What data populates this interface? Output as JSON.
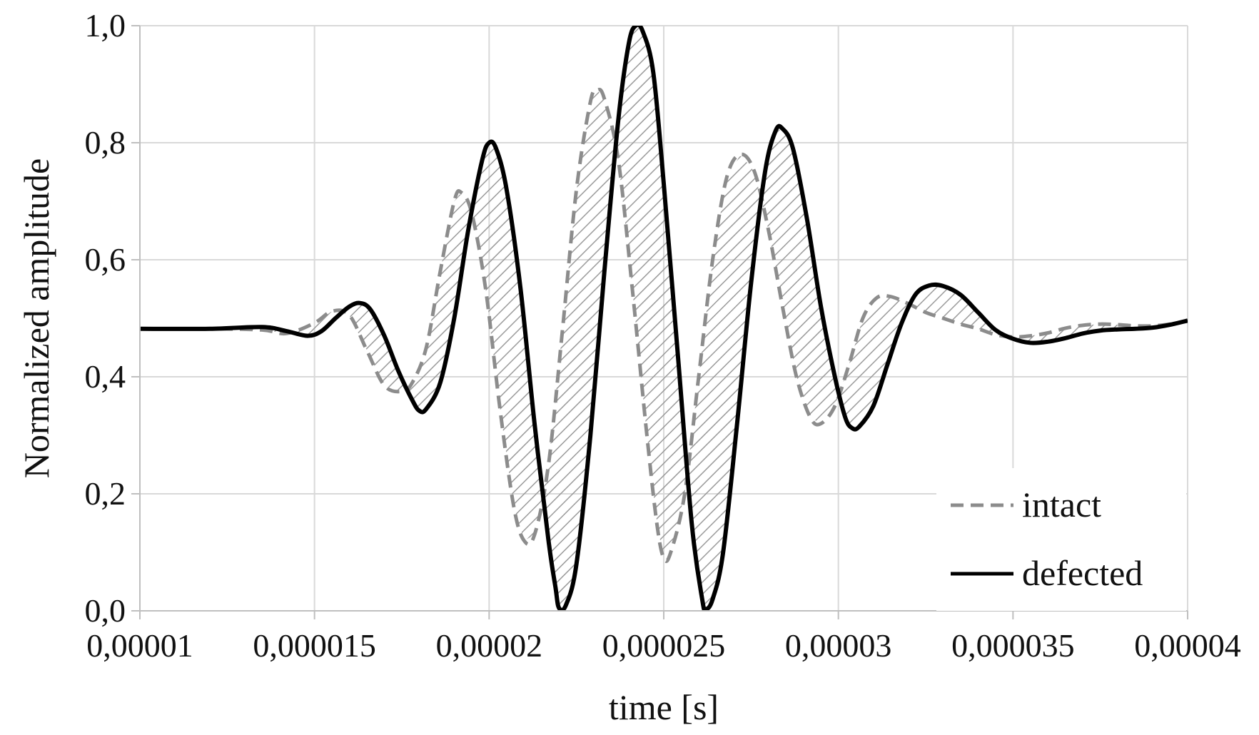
{
  "chart_data": {
    "type": "line",
    "title": "",
    "xlabel": "time [s]",
    "ylabel": "Normalized amplitude",
    "xlim": [
      1e-05,
      4e-05
    ],
    "ylim": [
      0,
      1
    ],
    "grid": true,
    "legend_position": "bottom-right",
    "x_ticks": [
      1e-05,
      1.5e-05,
      2e-05,
      2.5e-05,
      3e-05,
      3.5e-05,
      4e-05
    ],
    "x_tick_labels": [
      "0,00001",
      "0,000015",
      "0,00002",
      "0,000025",
      "0,00003",
      "0,000035",
      "0,00004"
    ],
    "y_ticks": [
      0,
      0.2,
      0.4,
      0.6,
      0.8,
      1.0
    ],
    "y_tick_labels": [
      "0,0",
      "0,2",
      "0,4",
      "0,6",
      "0,8",
      "1,0"
    ],
    "fill_between_series": true,
    "series": [
      {
        "name": "intact",
        "style": "dashed",
        "color": "#8c8c8c",
        "points": [
          [
            1e-05,
            0.482
          ],
          [
            1.2e-05,
            0.482
          ],
          [
            1.35e-05,
            0.48
          ],
          [
            1.42e-05,
            0.474
          ],
          [
            1.5e-05,
            0.492
          ],
          [
            1.55e-05,
            0.512
          ],
          [
            1.6e-05,
            0.505
          ],
          [
            1.65e-05,
            0.445
          ],
          [
            1.7e-05,
            0.385
          ],
          [
            1.75e-05,
            0.375
          ],
          [
            1.78e-05,
            0.39
          ],
          [
            1.82e-05,
            0.45
          ],
          [
            1.86e-05,
            0.58
          ],
          [
            1.9e-05,
            0.7
          ],
          [
            1.92e-05,
            0.715
          ],
          [
            1.95e-05,
            0.68
          ],
          [
            1.99e-05,
            0.55
          ],
          [
            2.03e-05,
            0.35
          ],
          [
            2.07e-05,
            0.18
          ],
          [
            2.1e-05,
            0.12
          ],
          [
            2.13e-05,
            0.13
          ],
          [
            2.17e-05,
            0.25
          ],
          [
            2.21e-05,
            0.48
          ],
          [
            2.25e-05,
            0.72
          ],
          [
            2.29e-05,
            0.87
          ],
          [
            2.31e-05,
            0.89
          ],
          [
            2.33e-05,
            0.875
          ],
          [
            2.37e-05,
            0.77
          ],
          [
            2.41e-05,
            0.55
          ],
          [
            2.45e-05,
            0.31
          ],
          [
            2.48e-05,
            0.15
          ],
          [
            2.5e-05,
            0.09
          ],
          [
            2.52e-05,
            0.1
          ],
          [
            2.56e-05,
            0.2
          ],
          [
            2.6e-05,
            0.4
          ],
          [
            2.64e-05,
            0.6
          ],
          [
            2.68e-05,
            0.74
          ],
          [
            2.72e-05,
            0.78
          ],
          [
            2.76e-05,
            0.75
          ],
          [
            2.8e-05,
            0.65
          ],
          [
            2.84e-05,
            0.52
          ],
          [
            2.88e-05,
            0.4
          ],
          [
            2.92e-05,
            0.33
          ],
          [
            2.95e-05,
            0.32
          ],
          [
            2.99e-05,
            0.35
          ],
          [
            3.03e-05,
            0.42
          ],
          [
            3.07e-05,
            0.5
          ],
          [
            3.11e-05,
            0.535
          ],
          [
            3.15e-05,
            0.537
          ],
          [
            3.2e-05,
            0.525
          ],
          [
            3.25e-05,
            0.51
          ],
          [
            3.3e-05,
            0.5
          ],
          [
            3.35e-05,
            0.49
          ],
          [
            3.4e-05,
            0.482
          ],
          [
            3.45e-05,
            0.472
          ],
          [
            3.5e-05,
            0.468
          ],
          [
            3.55e-05,
            0.47
          ],
          [
            3.6e-05,
            0.475
          ],
          [
            3.65e-05,
            0.483
          ],
          [
            3.7e-05,
            0.488
          ],
          [
            3.75e-05,
            0.49
          ],
          [
            3.8e-05,
            0.489
          ],
          [
            3.85e-05,
            0.487
          ],
          [
            3.9e-05,
            0.487
          ],
          [
            3.95e-05,
            0.49
          ],
          [
            4e-05,
            0.495
          ]
        ]
      },
      {
        "name": "defected",
        "style": "solid",
        "color": "#000000",
        "points": [
          [
            1e-05,
            0.482
          ],
          [
            1.2e-05,
            0.482
          ],
          [
            1.35e-05,
            0.485
          ],
          [
            1.42e-05,
            0.478
          ],
          [
            1.48e-05,
            0.47
          ],
          [
            1.52e-05,
            0.478
          ],
          [
            1.56e-05,
            0.5
          ],
          [
            1.6e-05,
            0.52
          ],
          [
            1.63e-05,
            0.526
          ],
          [
            1.66e-05,
            0.515
          ],
          [
            1.7e-05,
            0.47
          ],
          [
            1.74e-05,
            0.41
          ],
          [
            1.78e-05,
            0.36
          ],
          [
            1.8e-05,
            0.342
          ],
          [
            1.82e-05,
            0.345
          ],
          [
            1.86e-05,
            0.39
          ],
          [
            1.9e-05,
            0.5
          ],
          [
            1.94e-05,
            0.65
          ],
          [
            1.98e-05,
            0.77
          ],
          [
            2e-05,
            0.8
          ],
          [
            2.02e-05,
            0.79
          ],
          [
            2.05e-05,
            0.72
          ],
          [
            2.09e-05,
            0.55
          ],
          [
            2.13e-05,
            0.32
          ],
          [
            2.17e-05,
            0.12
          ],
          [
            2.19e-05,
            0.04
          ],
          [
            2.2e-05,
            0.005
          ],
          [
            2.22e-05,
            0.01
          ],
          [
            2.25e-05,
            0.08
          ],
          [
            2.29e-05,
            0.3
          ],
          [
            2.33e-05,
            0.58
          ],
          [
            2.37e-05,
            0.84
          ],
          [
            2.4e-05,
            0.97
          ],
          [
            2.42e-05,
            1.0
          ],
          [
            2.44e-05,
            0.99
          ],
          [
            2.47e-05,
            0.92
          ],
          [
            2.5e-05,
            0.73
          ],
          [
            2.54e-05,
            0.44
          ],
          [
            2.58e-05,
            0.15
          ],
          [
            2.61e-05,
            0.02
          ],
          [
            2.62e-05,
            0.003
          ],
          [
            2.64e-05,
            0.02
          ],
          [
            2.67e-05,
            0.1
          ],
          [
            2.71e-05,
            0.32
          ],
          [
            2.75e-05,
            0.56
          ],
          [
            2.79e-05,
            0.75
          ],
          [
            2.82e-05,
            0.82
          ],
          [
            2.84e-05,
            0.824
          ],
          [
            2.87e-05,
            0.79
          ],
          [
            2.91e-05,
            0.67
          ],
          [
            2.95e-05,
            0.52
          ],
          [
            2.99e-05,
            0.4
          ],
          [
            3.02e-05,
            0.33
          ],
          [
            3.04e-05,
            0.312
          ],
          [
            3.06e-05,
            0.315
          ],
          [
            3.1e-05,
            0.35
          ],
          [
            3.14e-05,
            0.42
          ],
          [
            3.18e-05,
            0.49
          ],
          [
            3.22e-05,
            0.54
          ],
          [
            3.26e-05,
            0.556
          ],
          [
            3.3e-05,
            0.555
          ],
          [
            3.35e-05,
            0.54
          ],
          [
            3.4e-05,
            0.51
          ],
          [
            3.45e-05,
            0.48
          ],
          [
            3.5e-05,
            0.465
          ],
          [
            3.55e-05,
            0.458
          ],
          [
            3.6e-05,
            0.46
          ],
          [
            3.65e-05,
            0.466
          ],
          [
            3.7e-05,
            0.474
          ],
          [
            3.75e-05,
            0.479
          ],
          [
            3.8e-05,
            0.481
          ],
          [
            3.85e-05,
            0.482
          ],
          [
            3.9e-05,
            0.484
          ],
          [
            3.95e-05,
            0.489
          ],
          [
            4e-05,
            0.496
          ]
        ]
      }
    ]
  }
}
